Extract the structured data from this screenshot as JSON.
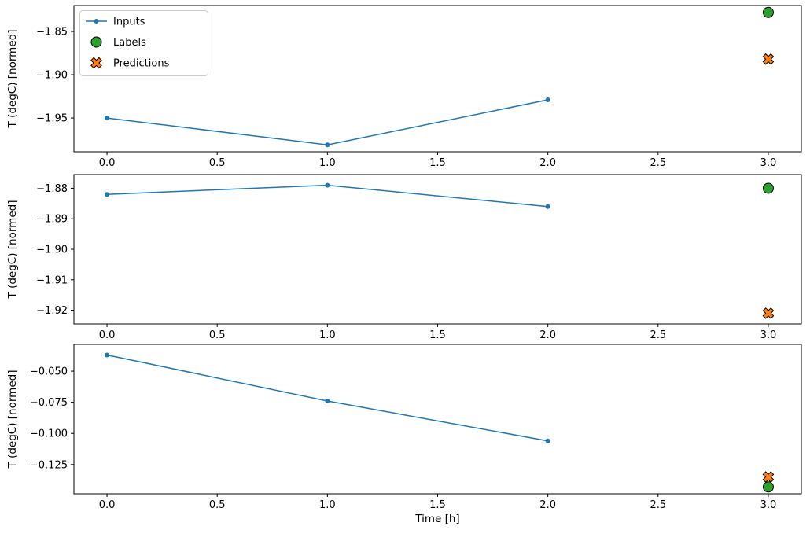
{
  "figure": {
    "xlabel": "Time [h]",
    "legend": {
      "entries": [
        {
          "label": "Inputs",
          "marker": "line-dot",
          "color": "#1f77b4"
        },
        {
          "label": "Labels",
          "marker": "circle",
          "color": "#2ca02c"
        },
        {
          "label": "Predictions",
          "marker": "x",
          "color": "#ff7f0e"
        }
      ]
    }
  },
  "chart_data": [
    {
      "type": "line",
      "title": "",
      "xlabel": "",
      "ylabel": "T (degC) [normed]",
      "xlim": [
        -0.15,
        3.15
      ],
      "ylim": [
        -1.989,
        -1.82
      ],
      "xticks": [
        0.0,
        0.5,
        1.0,
        1.5,
        2.0,
        2.5,
        3.0
      ],
      "yticks": [
        -1.85,
        -1.9,
        -1.95
      ],
      "ytick_decimals": 2,
      "series": [
        {
          "name": "Inputs",
          "marker": "line-dot",
          "color": "#1f77b4",
          "x": [
            0,
            1,
            2
          ],
          "y": [
            -1.95,
            -1.981,
            -1.929
          ]
        },
        {
          "name": "Labels",
          "marker": "circle",
          "color": "#2ca02c",
          "x": [
            3
          ],
          "y": [
            -1.828
          ]
        },
        {
          "name": "Predictions",
          "marker": "x",
          "color": "#ff7f0e",
          "x": [
            3
          ],
          "y": [
            -1.882
          ]
        }
      ]
    },
    {
      "type": "line",
      "title": "",
      "xlabel": "",
      "ylabel": "T (degC) [normed]",
      "xlim": [
        -0.15,
        3.15
      ],
      "ylim": [
        -1.9245,
        -1.8755
      ],
      "xticks": [
        0.0,
        0.5,
        1.0,
        1.5,
        2.0,
        2.5,
        3.0
      ],
      "yticks": [
        -1.88,
        -1.89,
        -1.9,
        -1.91,
        -1.92
      ],
      "ytick_decimals": 2,
      "series": [
        {
          "name": "Inputs",
          "marker": "line-dot",
          "color": "#1f77b4",
          "x": [
            0,
            1,
            2
          ],
          "y": [
            -1.882,
            -1.879,
            -1.886
          ]
        },
        {
          "name": "Labels",
          "marker": "circle",
          "color": "#2ca02c",
          "x": [
            3
          ],
          "y": [
            -1.88
          ]
        },
        {
          "name": "Predictions",
          "marker": "x",
          "color": "#ff7f0e",
          "x": [
            3
          ],
          "y": [
            -1.921
          ]
        }
      ]
    },
    {
      "type": "line",
      "title": "",
      "xlabel": "Time [h]",
      "ylabel": "T (degC) [normed]",
      "xlim": [
        -0.15,
        3.15
      ],
      "ylim": [
        -0.1485,
        -0.0285
      ],
      "xticks": [
        0.0,
        0.5,
        1.0,
        1.5,
        2.0,
        2.5,
        3.0
      ],
      "yticks": [
        -0.05,
        -0.075,
        -0.1,
        -0.125
      ],
      "ytick_decimals": 3,
      "series": [
        {
          "name": "Inputs",
          "marker": "line-dot",
          "color": "#1f77b4",
          "x": [
            0,
            1,
            2
          ],
          "y": [
            -0.037,
            -0.074,
            -0.106
          ]
        },
        {
          "name": "Labels",
          "marker": "circle",
          "color": "#2ca02c",
          "x": [
            3
          ],
          "y": [
            -0.143
          ]
        },
        {
          "name": "Predictions",
          "marker": "x",
          "color": "#ff7f0e",
          "x": [
            3
          ],
          "y": [
            -0.135
          ]
        }
      ]
    }
  ]
}
